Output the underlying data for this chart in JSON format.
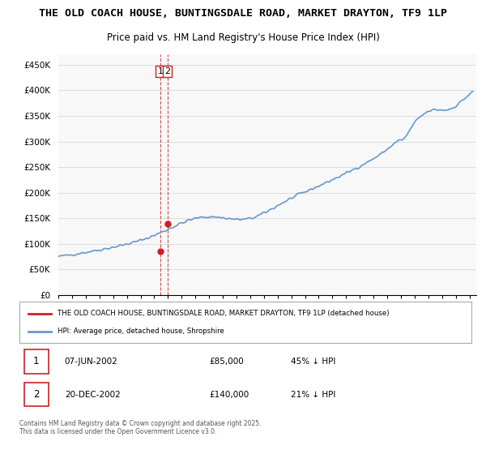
{
  "title_line1": "THE OLD COACH HOUSE, BUNTINGSDALE ROAD, MARKET DRAYTON, TF9 1LP",
  "title_line2": "Price paid vs. HM Land Registry's House Price Index (HPI)",
  "ylabel": "",
  "ylim": [
    0,
    470000
  ],
  "yticks": [
    0,
    50000,
    100000,
    150000,
    200000,
    250000,
    300000,
    350000,
    400000,
    450000
  ],
  "ytick_labels": [
    "£0",
    "£50K",
    "£100K",
    "£150K",
    "£200K",
    "£250K",
    "£300K",
    "£350K",
    "£400K",
    "£450K"
  ],
  "hpi_color": "#6699cc",
  "property_color": "#cc2222",
  "vline_color": "#cc2222",
  "vline_style": "--",
  "background_color": "#ffffff",
  "grid_color": "#dddddd",
  "purchase1_date": "07-JUN-2002",
  "purchase1_price": 85000,
  "purchase1_hpi_pct": "45% ↓ HPI",
  "purchase2_date": "20-DEC-2002",
  "purchase2_price": 140000,
  "purchase2_hpi_pct": "21% ↓ HPI",
  "legend_property": "THE OLD COACH HOUSE, BUNTINGSDALE ROAD, MARKET DRAYTON, TF9 1LP (detached house)",
  "legend_hpi": "HPI: Average price, detached house, Shropshire",
  "footnote": "Contains HM Land Registry data © Crown copyright and database right 2025.\nThis data is licensed under the Open Government Licence v3.0."
}
